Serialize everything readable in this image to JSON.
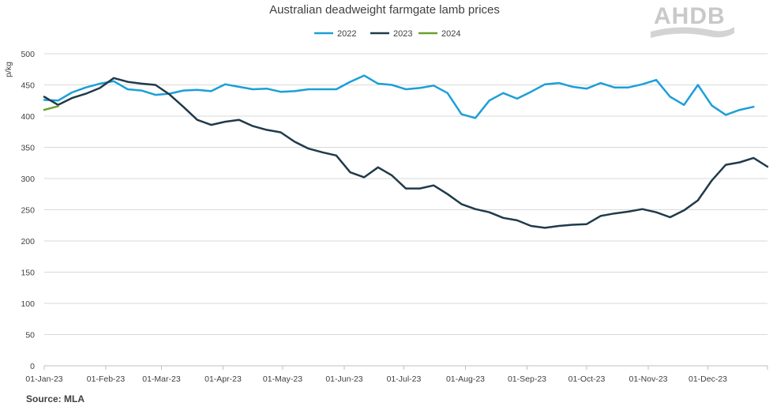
{
  "chart_data": {
    "type": "line",
    "title": "Australian deadweight farmgate lamb prices",
    "ylabel": "p/kg",
    "xlabel": "",
    "ylim": [
      0,
      500
    ],
    "yticks": [
      0,
      50,
      100,
      150,
      200,
      250,
      300,
      350,
      400,
      450,
      500
    ],
    "x_range": [
      "2023-01-01",
      "2023-12-31"
    ],
    "x_ticks": [
      {
        "date": "2023-01-01",
        "label": "01-Jan-23"
      },
      {
        "date": "2023-02-01",
        "label": "01-Feb-23"
      },
      {
        "date": "2023-03-01",
        "label": "01-Mar-23"
      },
      {
        "date": "2023-04-01",
        "label": "01-Apr-23"
      },
      {
        "date": "2023-05-01",
        "label": "01-May-23"
      },
      {
        "date": "2023-06-01",
        "label": "01-Jun-23"
      },
      {
        "date": "2023-07-01",
        "label": "01-Jul-23"
      },
      {
        "date": "2023-08-01",
        "label": "01-Aug-23"
      },
      {
        "date": "2023-09-01",
        "label": "01-Sep-23"
      },
      {
        "date": "2023-10-01",
        "label": "01-Oct-23"
      },
      {
        "date": "2023-11-01",
        "label": "01-Nov-23"
      },
      {
        "date": "2023-12-01",
        "label": "01-Dec-23"
      }
    ],
    "grid": true,
    "legend_position": "top-center",
    "series": [
      {
        "name": "2022",
        "color": "#1b9fd8",
        "points": [
          [
            "2023-01-01",
            426
          ],
          [
            "2023-01-08",
            425
          ],
          [
            "2023-01-15",
            438
          ],
          [
            "2023-01-22",
            446
          ],
          [
            "2023-01-29",
            452
          ],
          [
            "2023-02-05",
            456
          ],
          [
            "2023-02-12",
            443
          ],
          [
            "2023-02-19",
            441
          ],
          [
            "2023-02-26",
            434
          ],
          [
            "2023-03-05",
            436
          ],
          [
            "2023-03-12",
            441
          ],
          [
            "2023-03-19",
            442
          ],
          [
            "2023-03-26",
            440
          ],
          [
            "2023-04-02",
            451
          ],
          [
            "2023-04-09",
            447
          ],
          [
            "2023-04-16",
            443
          ],
          [
            "2023-04-23",
            444
          ],
          [
            "2023-04-30",
            439
          ],
          [
            "2023-05-07",
            440
          ],
          [
            "2023-05-14",
            443
          ],
          [
            "2023-05-21",
            443
          ],
          [
            "2023-05-28",
            443
          ],
          [
            "2023-06-04",
            455
          ],
          [
            "2023-06-11",
            465
          ],
          [
            "2023-06-18",
            452
          ],
          [
            "2023-06-25",
            450
          ],
          [
            "2023-07-02",
            443
          ],
          [
            "2023-07-09",
            445
          ],
          [
            "2023-07-16",
            449
          ],
          [
            "2023-07-23",
            437
          ],
          [
            "2023-07-30",
            403
          ],
          [
            "2023-08-06",
            397
          ],
          [
            "2023-08-13",
            425
          ],
          [
            "2023-08-20",
            437
          ],
          [
            "2023-08-27",
            428
          ],
          [
            "2023-09-03",
            439
          ],
          [
            "2023-09-10",
            451
          ],
          [
            "2023-09-17",
            453
          ],
          [
            "2023-09-24",
            447
          ],
          [
            "2023-10-01",
            444
          ],
          [
            "2023-10-08",
            453
          ],
          [
            "2023-10-15",
            446
          ],
          [
            "2023-10-22",
            446
          ],
          [
            "2023-10-29",
            451
          ],
          [
            "2023-11-05",
            458
          ],
          [
            "2023-11-12",
            431
          ],
          [
            "2023-11-19",
            418
          ],
          [
            "2023-11-26",
            450
          ],
          [
            "2023-12-03",
            417
          ],
          [
            "2023-12-10",
            402
          ],
          [
            "2023-12-17",
            410
          ],
          [
            "2023-12-24",
            415
          ]
        ]
      },
      {
        "name": "2023",
        "color": "#203a4a",
        "points": [
          [
            "2023-01-01",
            431
          ],
          [
            "2023-01-08",
            418
          ],
          [
            "2023-01-15",
            429
          ],
          [
            "2023-01-22",
            436
          ],
          [
            "2023-01-29",
            445
          ],
          [
            "2023-02-05",
            461
          ],
          [
            "2023-02-12",
            455
          ],
          [
            "2023-02-19",
            452
          ],
          [
            "2023-02-26",
            450
          ],
          [
            "2023-03-05",
            435
          ],
          [
            "2023-03-12",
            415
          ],
          [
            "2023-03-19",
            394
          ],
          [
            "2023-03-26",
            386
          ],
          [
            "2023-04-02",
            391
          ],
          [
            "2023-04-09",
            394
          ],
          [
            "2023-04-16",
            384
          ],
          [
            "2023-04-23",
            378
          ],
          [
            "2023-04-30",
            374
          ],
          [
            "2023-05-07",
            359
          ],
          [
            "2023-05-14",
            348
          ],
          [
            "2023-05-21",
            342
          ],
          [
            "2023-05-28",
            337
          ],
          [
            "2023-06-04",
            310
          ],
          [
            "2023-06-11",
            302
          ],
          [
            "2023-06-18",
            318
          ],
          [
            "2023-06-25",
            305
          ],
          [
            "2023-07-02",
            284
          ],
          [
            "2023-07-09",
            284
          ],
          [
            "2023-07-16",
            289
          ],
          [
            "2023-07-23",
            275
          ],
          [
            "2023-07-30",
            259
          ],
          [
            "2023-08-06",
            251
          ],
          [
            "2023-08-13",
            246
          ],
          [
            "2023-08-20",
            237
          ],
          [
            "2023-08-27",
            233
          ],
          [
            "2023-09-03",
            224
          ],
          [
            "2023-09-10",
            221
          ],
          [
            "2023-09-17",
            224
          ],
          [
            "2023-09-24",
            226
          ],
          [
            "2023-10-01",
            227
          ],
          [
            "2023-10-08",
            240
          ],
          [
            "2023-10-15",
            244
          ],
          [
            "2023-10-22",
            247
          ],
          [
            "2023-10-29",
            251
          ],
          [
            "2023-11-05",
            246
          ],
          [
            "2023-11-12",
            238
          ],
          [
            "2023-11-19",
            249
          ],
          [
            "2023-11-26",
            265
          ],
          [
            "2023-12-03",
            297
          ],
          [
            "2023-12-10",
            322
          ],
          [
            "2023-12-17",
            326
          ],
          [
            "2023-12-24",
            333
          ],
          [
            "2023-12-31",
            319
          ]
        ]
      },
      {
        "name": "2024",
        "color": "#6aa12e",
        "points": [
          [
            "2023-01-01",
            410
          ],
          [
            "2023-01-08",
            416
          ]
        ]
      }
    ]
  },
  "source": "Source: MLA",
  "logo": {
    "text": "AHDB"
  }
}
